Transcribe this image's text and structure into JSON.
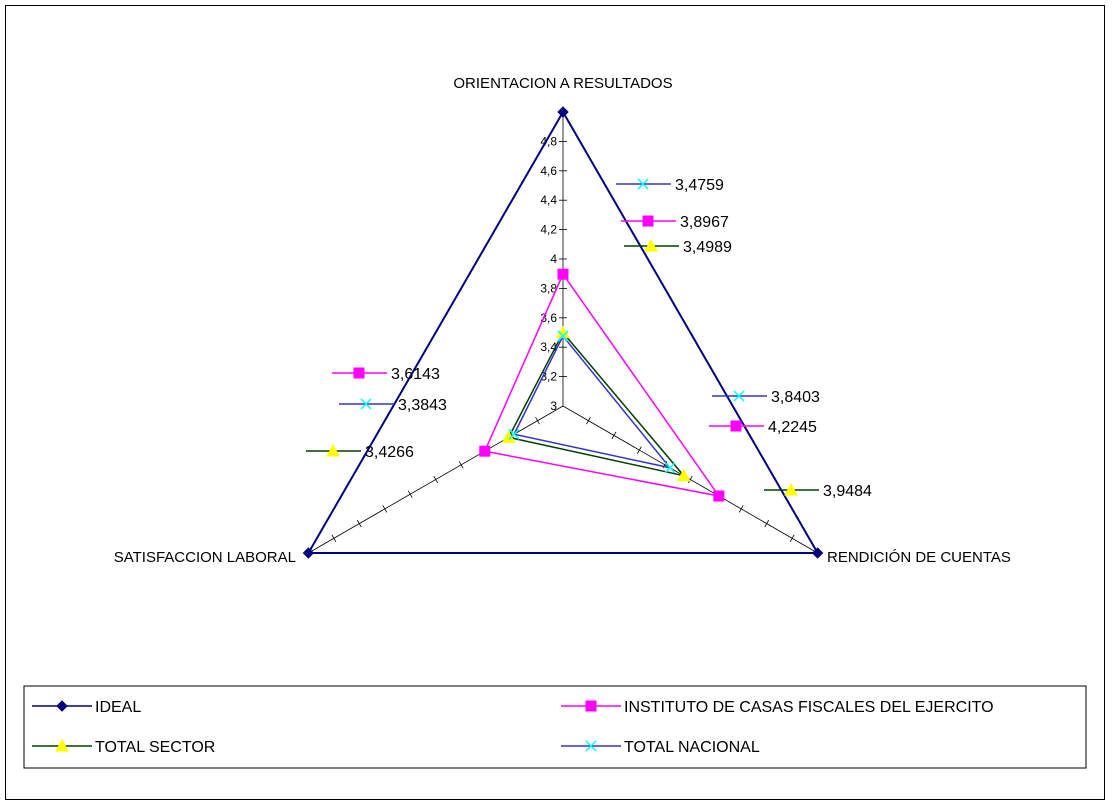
{
  "chart_data": {
    "type": "radar",
    "axes": [
      "ORIENTACION A RESULTADOS",
      "RENDICIÓN DE CUENTAS",
      "SATISFACCION LABORAL"
    ],
    "rlim": [
      3,
      5
    ],
    "ticks": [
      "3",
      "3,2",
      "3,4",
      "3,6",
      "3,8",
      "4",
      "4,2",
      "4,4",
      "4,6",
      "4,8"
    ],
    "series": [
      {
        "name": "IDEAL",
        "values": [
          5,
          5,
          5
        ],
        "color": "#000080",
        "marker": "diamond",
        "labels": [
          "",
          "",
          ""
        ]
      },
      {
        "name": "INSTITUTO DE CASAS FISCALES DEL EJERCITO",
        "values": [
          3.8967,
          4.2245,
          3.6143
        ],
        "color": "#FF00FF",
        "marker": "square",
        "labels": [
          "3,8967",
          "4,2245",
          "3,6143"
        ]
      },
      {
        "name": "TOTAL SECTOR",
        "values": [
          3.4989,
          3.9484,
          3.4266
        ],
        "color": "#004000",
        "marker": "triangle",
        "labels": [
          "3,4989",
          "3,9484",
          "3,4266"
        ]
      },
      {
        "name": "TOTAL NACIONAL",
        "values": [
          3.4759,
          3.8403,
          3.3843
        ],
        "color": "#3333CC",
        "marker": "x",
        "labels": [
          "3,4759",
          "3,8403",
          "3,3843"
        ]
      }
    ],
    "legend_position": "bottom"
  }
}
